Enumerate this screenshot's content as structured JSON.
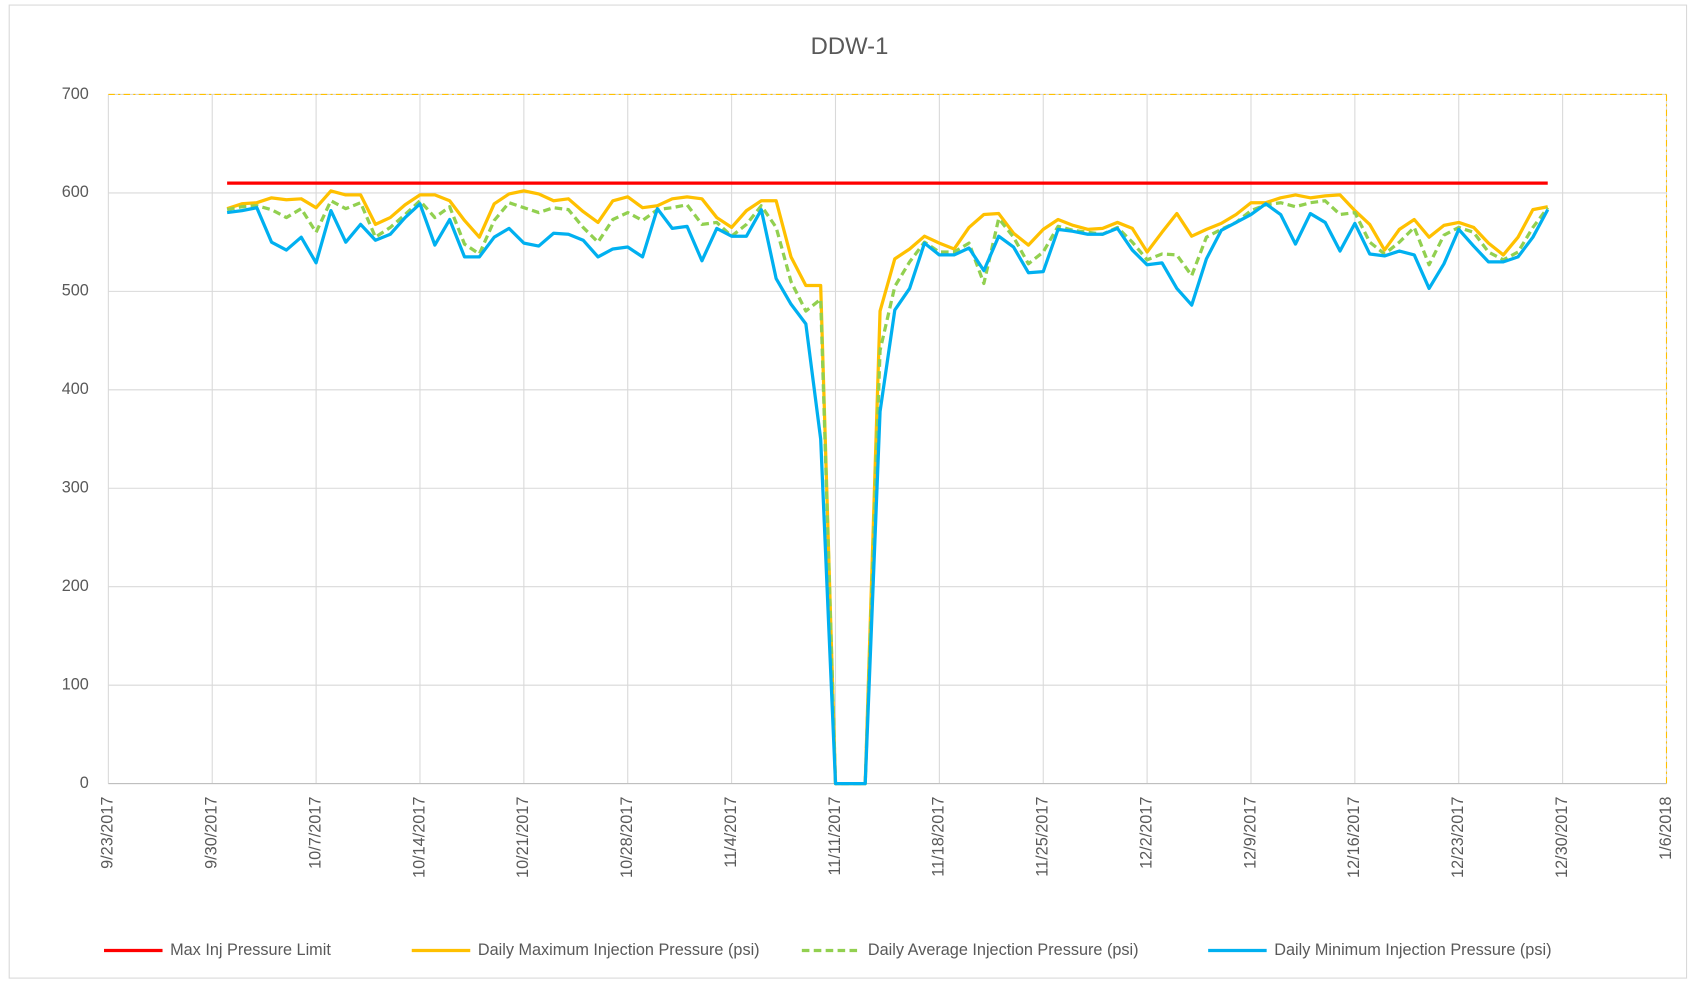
{
  "chart_data": {
    "type": "line",
    "title": "DDW-1",
    "x": [
      "10/1/2017",
      "10/2/2017",
      "10/3/2017",
      "10/4/2017",
      "10/5/2017",
      "10/6/2017",
      "10/7/2017",
      "10/8/2017",
      "10/9/2017",
      "10/10/2017",
      "10/11/2017",
      "10/12/2017",
      "10/13/2017",
      "10/14/2017",
      "10/15/2017",
      "10/16/2017",
      "10/17/2017",
      "10/18/2017",
      "10/19/2017",
      "10/20/2017",
      "10/21/2017",
      "10/22/2017",
      "10/23/2017",
      "10/24/2017",
      "10/25/2017",
      "10/26/2017",
      "10/27/2017",
      "10/28/2017",
      "10/29/2017",
      "10/30/2017",
      "10/31/2017",
      "11/1/2017",
      "11/2/2017",
      "11/3/2017",
      "11/4/2017",
      "11/5/2017",
      "11/6/2017",
      "11/7/2017",
      "11/8/2017",
      "11/9/2017",
      "11/10/2017",
      "11/11/2017",
      "11/12/2017",
      "11/13/2017",
      "11/14/2017",
      "11/15/2017",
      "11/16/2017",
      "11/17/2017",
      "11/18/2017",
      "11/19/2017",
      "11/20/2017",
      "11/21/2017",
      "11/22/2017",
      "11/23/2017",
      "11/24/2017",
      "11/25/2017",
      "11/26/2017",
      "11/27/2017",
      "11/28/2017",
      "11/29/2017",
      "11/30/2017",
      "12/1/2017",
      "12/2/2017",
      "12/3/2017",
      "12/4/2017",
      "12/5/2017",
      "12/6/2017",
      "12/7/2017",
      "12/8/2017",
      "12/9/2017",
      "12/10/2017",
      "12/11/2017",
      "12/12/2017",
      "12/13/2017",
      "12/14/2017",
      "12/15/2017",
      "12/16/2017",
      "12/17/2017",
      "12/18/2017",
      "12/19/2017",
      "12/20/2017",
      "12/21/2017",
      "12/22/2017",
      "12/23/2017",
      "12/24/2017",
      "12/25/2017",
      "12/26/2017",
      "12/27/2017",
      "12/28/2017",
      "12/29/2017"
    ],
    "series": [
      {
        "name": "Max Inj Pressure Limit",
        "color": "#ff0000",
        "values": [
          610,
          610,
          610,
          610,
          610,
          610,
          610,
          610,
          610,
          610,
          610,
          610,
          610,
          610,
          610,
          610,
          610,
          610,
          610,
          610,
          610,
          610,
          610,
          610,
          610,
          610,
          610,
          610,
          610,
          610,
          610,
          610,
          610,
          610,
          610,
          610,
          610,
          610,
          610,
          610,
          610,
          610,
          610,
          610,
          610,
          610,
          610,
          610,
          610,
          610,
          610,
          610,
          610,
          610,
          610,
          610,
          610,
          610,
          610,
          610,
          610,
          610,
          610,
          610,
          610,
          610,
          610,
          610,
          610,
          610,
          610,
          610,
          610,
          610,
          610,
          610,
          610,
          610,
          610,
          610,
          610,
          610,
          610,
          610,
          610,
          610,
          610,
          610,
          610,
          610
        ]
      },
      {
        "name": "Daily Maximum Injection Pressure (psi)",
        "color": "#ffc000",
        "values": [
          584,
          589,
          590,
          595,
          593,
          594,
          585,
          602,
          598,
          598,
          568,
          575,
          588,
          598,
          598,
          592,
          572,
          555,
          589,
          599,
          602,
          599,
          592,
          594,
          581,
          570,
          592,
          596,
          585,
          587,
          594,
          596,
          594,
          575,
          565,
          582,
          592,
          592,
          535,
          506,
          506,
          0,
          0,
          0,
          480,
          533,
          543,
          556,
          549,
          543,
          565,
          578,
          579,
          559,
          547,
          563,
          573,
          567,
          563,
          564,
          570,
          564,
          540,
          560,
          579,
          556,
          563,
          569,
          578,
          590,
          590,
          595,
          598,
          595,
          597,
          598,
          582,
          568,
          542,
          563,
          573,
          555,
          567,
          570,
          565,
          549,
          537,
          555,
          583,
          586
        ]
      },
      {
        "name": "Daily Average Injection Pressure (psi)",
        "color": "#92d050",
        "dashed": true,
        "values": [
          583,
          586,
          587,
          583,
          575,
          584,
          560,
          592,
          584,
          590,
          555,
          565,
          578,
          592,
          575,
          586,
          548,
          538,
          572,
          590,
          585,
          580,
          585,
          583,
          565,
          550,
          573,
          580,
          572,
          583,
          585,
          588,
          568,
          570,
          556,
          568,
          587,
          565,
          510,
          480,
          492,
          0,
          0,
          0,
          440,
          505,
          530,
          550,
          540,
          540,
          549,
          508,
          574,
          555,
          528,
          540,
          566,
          562,
          560,
          558,
          565,
          550,
          532,
          538,
          537,
          516,
          555,
          563,
          570,
          582,
          588,
          590,
          586,
          590,
          592,
          578,
          580,
          550,
          538,
          550,
          565,
          527,
          557,
          565,
          560,
          540,
          532,
          540,
          565,
          585
        ]
      },
      {
        "name": "Daily Minimum Injection Pressure (psi)",
        "color": "#00b0f0",
        "values": [
          580,
          582,
          585,
          550,
          542,
          555,
          529,
          582,
          550,
          568,
          552,
          558,
          575,
          589,
          547,
          573,
          535,
          535,
          555,
          564,
          549,
          546,
          559,
          558,
          552,
          535,
          543,
          545,
          535,
          584,
          564,
          566,
          531,
          564,
          556,
          556,
          583,
          513,
          487,
          467,
          350,
          0,
          0,
          0,
          378,
          481,
          503,
          549,
          537,
          537,
          544,
          521,
          556,
          545,
          519,
          520,
          563,
          561,
          558,
          558,
          564,
          542,
          527,
          529,
          503,
          486,
          533,
          562,
          570,
          578,
          589,
          578,
          548,
          579,
          570,
          541,
          569,
          538,
          536,
          541,
          537,
          503,
          528,
          563,
          546,
          530,
          530,
          535,
          555,
          583
        ]
      }
    ],
    "xlim": [
      "9/23/2017",
      "1/6/2018"
    ],
    "xticks": [
      "9/23/2017",
      "9/30/2017",
      "10/7/2017",
      "10/14/2017",
      "10/21/2017",
      "10/28/2017",
      "11/4/2017",
      "11/11/2017",
      "11/18/2017",
      "11/25/2017",
      "12/2/2017",
      "12/9/2017",
      "12/16/2017",
      "12/23/2017",
      "12/30/2017",
      "1/6/2018"
    ],
    "ylim": [
      0,
      700
    ],
    "yticks": [
      0,
      100,
      200,
      300,
      400,
      500,
      600,
      700
    ],
    "grid": true,
    "legend": "bottom"
  }
}
